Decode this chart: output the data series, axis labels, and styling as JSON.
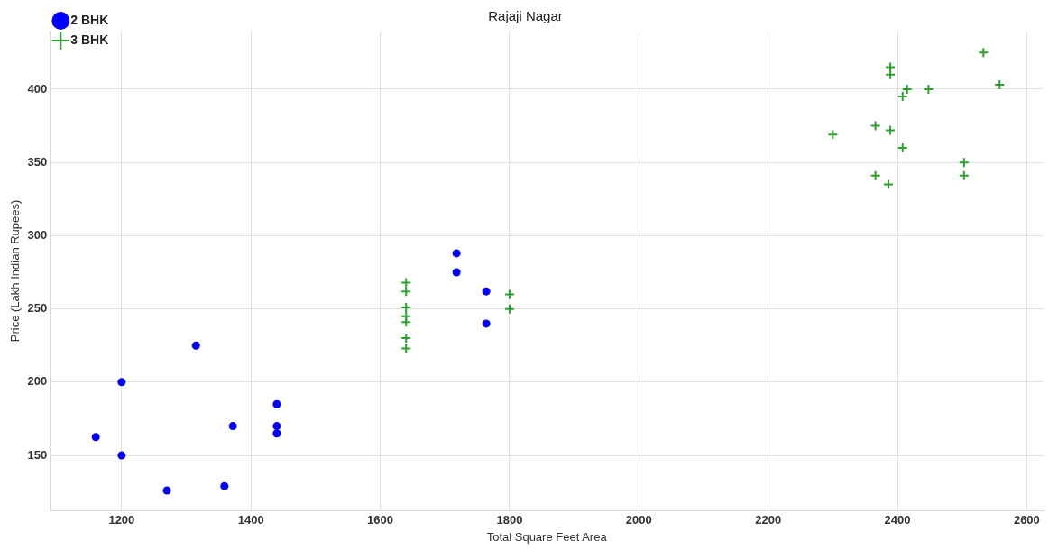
{
  "chart_data": {
    "type": "scatter",
    "title": "Rajaji Nagar",
    "xlabel": "Total Square Feet Area",
    "ylabel": "Price (Lakh Indian Rupees)",
    "xlim": [
      1089,
      2626
    ],
    "ylim": [
      112,
      440
    ],
    "xticks": [
      1200,
      1400,
      1600,
      1800,
      2000,
      2200,
      2400,
      2600
    ],
    "yticks": [
      150,
      200,
      250,
      300,
      350,
      400
    ],
    "grid": true,
    "legend": "top left",
    "series": [
      {
        "name": "2 BHK",
        "color": "#0000ff",
        "marker": "circle",
        "x": [
          1160,
          1200,
          1200,
          1315,
          1372,
          1440,
          1440,
          1440,
          1270,
          1359,
          1718,
          1718,
          1764,
          1764
        ],
        "values": [
          162.5,
          200,
          150,
          225,
          170,
          185,
          170,
          165,
          126,
          129,
          288,
          275,
          262,
          240
        ]
      },
      {
        "name": "3 BHK",
        "color": "#2ca02c",
        "marker": "cross",
        "x": [
          1640,
          1640,
          1640,
          1640,
          1640,
          1640,
          1640,
          1800,
          1800,
          2533,
          2389,
          2389,
          2415,
          2408,
          2448,
          2558,
          2366,
          2300,
          2389,
          2408,
          2503,
          2503,
          2366,
          2386
        ],
        "values": [
          268,
          262,
          251,
          245,
          241,
          230,
          223,
          260,
          250,
          425,
          415,
          410,
          400,
          395,
          400,
          403,
          375,
          369,
          372,
          360,
          350,
          341,
          341,
          335
        ]
      }
    ]
  }
}
